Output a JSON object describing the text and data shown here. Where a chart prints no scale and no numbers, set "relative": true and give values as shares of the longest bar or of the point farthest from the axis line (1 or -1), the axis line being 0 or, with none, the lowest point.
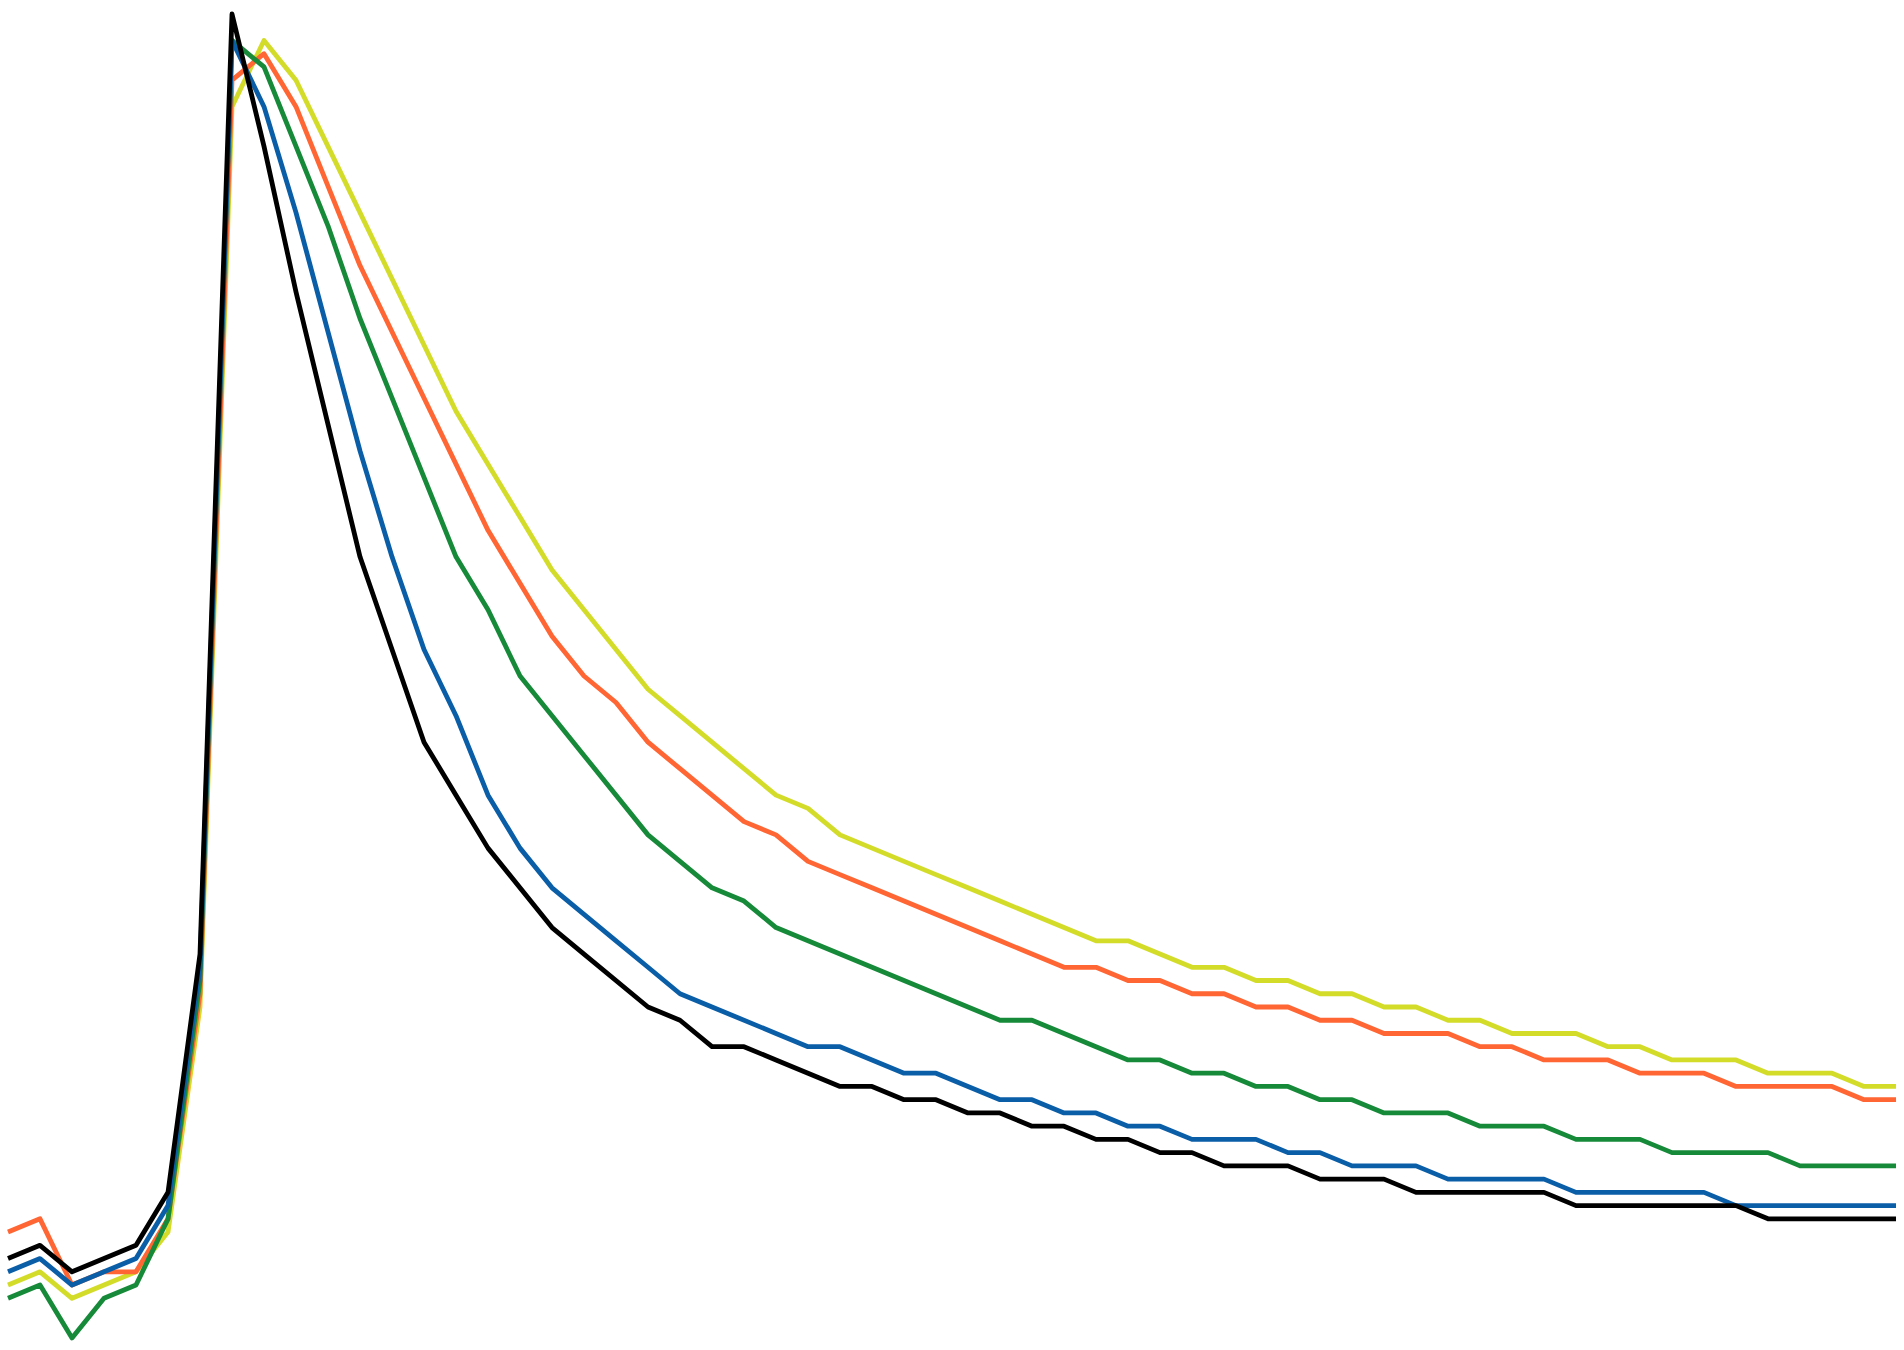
{
  "chart_data": {
    "type": "line",
    "relative": true,
    "categories": [
      null,
      null,
      null,
      null,
      null,
      null,
      null,
      null,
      null,
      null,
      null,
      null,
      null,
      null,
      null,
      null,
      null,
      null,
      null,
      null,
      null,
      null,
      null,
      null,
      null,
      null,
      null,
      null,
      null,
      null,
      null,
      null,
      null,
      null,
      null,
      null,
      null,
      null,
      null,
      null,
      null,
      null,
      null,
      null,
      null,
      null,
      null,
      null,
      null,
      null,
      null,
      null,
      null,
      null,
      null,
      null,
      null,
      null,
      null,
      null
    ],
    "series": [
      {
        "color": "#d4dc2a",
        "values": [
          0.04,
          0.05,
          0.03,
          0.04,
          0.05,
          0.08,
          0.25,
          0.93,
          0.98,
          0.95,
          0.9,
          0.85,
          0.8,
          0.75,
          0.7,
          0.66,
          0.62,
          0.58,
          0.55,
          0.52,
          0.49,
          0.47,
          0.45,
          0.43,
          0.41,
          0.4,
          0.38,
          0.37,
          0.36,
          0.35,
          0.34,
          0.33,
          0.32,
          0.31,
          0.3,
          0.3,
          0.29,
          0.28,
          0.28,
          0.27,
          0.27,
          0.26,
          0.26,
          0.25,
          0.25,
          0.24,
          0.24,
          0.23,
          0.23,
          0.23,
          0.22,
          0.22,
          0.21,
          0.21,
          0.21,
          0.2,
          0.2,
          0.2,
          0.19,
          0.19
        ]
      },
      {
        "color": "#ff6633",
        "values": [
          0.08,
          0.09,
          0.04,
          0.05,
          0.05,
          0.09,
          0.26,
          0.95,
          0.97,
          0.93,
          0.87,
          0.81,
          0.76,
          0.71,
          0.66,
          0.61,
          0.57,
          0.53,
          0.5,
          0.48,
          0.45,
          0.43,
          0.41,
          0.39,
          0.38,
          0.36,
          0.35,
          0.34,
          0.33,
          0.32,
          0.31,
          0.3,
          0.29,
          0.28,
          0.28,
          0.27,
          0.27,
          0.26,
          0.26,
          0.25,
          0.25,
          0.24,
          0.24,
          0.23,
          0.23,
          0.23,
          0.22,
          0.22,
          0.21,
          0.21,
          0.21,
          0.2,
          0.2,
          0.2,
          0.19,
          0.19,
          0.19,
          0.19,
          0.18,
          0.18
        ]
      },
      {
        "color": "#178a3a",
        "values": [
          0.03,
          0.04,
          0.0,
          0.03,
          0.04,
          0.09,
          0.27,
          0.98,
          0.96,
          0.9,
          0.84,
          0.77,
          0.71,
          0.65,
          0.59,
          0.55,
          0.5,
          0.47,
          0.44,
          0.41,
          0.38,
          0.36,
          0.34,
          0.33,
          0.31,
          0.3,
          0.29,
          0.28,
          0.27,
          0.26,
          0.25,
          0.24,
          0.24,
          0.23,
          0.22,
          0.21,
          0.21,
          0.2,
          0.2,
          0.19,
          0.19,
          0.18,
          0.18,
          0.17,
          0.17,
          0.17,
          0.16,
          0.16,
          0.16,
          0.15,
          0.15,
          0.15,
          0.14,
          0.14,
          0.14,
          0.14,
          0.13,
          0.13,
          0.13,
          0.13
        ]
      },
      {
        "color": "#0a5ea8",
        "values": [
          0.05,
          0.06,
          0.04,
          0.05,
          0.06,
          0.1,
          0.28,
          0.98,
          0.93,
          0.85,
          0.76,
          0.67,
          0.59,
          0.52,
          0.47,
          0.41,
          0.37,
          0.34,
          0.32,
          0.3,
          0.28,
          0.26,
          0.25,
          0.24,
          0.23,
          0.22,
          0.22,
          0.21,
          0.2,
          0.2,
          0.19,
          0.18,
          0.18,
          0.17,
          0.17,
          0.16,
          0.16,
          0.15,
          0.15,
          0.15,
          0.14,
          0.14,
          0.13,
          0.13,
          0.13,
          0.12,
          0.12,
          0.12,
          0.12,
          0.11,
          0.11,
          0.11,
          0.11,
          0.11,
          0.1,
          0.1,
          0.1,
          0.1,
          0.1,
          0.1
        ]
      },
      {
        "color": "#000000",
        "values": [
          0.06,
          0.07,
          0.05,
          0.06,
          0.07,
          0.11,
          0.29,
          1.0,
          0.9,
          0.79,
          0.69,
          0.59,
          0.52,
          0.45,
          0.41,
          0.37,
          0.34,
          0.31,
          0.29,
          0.27,
          0.25,
          0.24,
          0.22,
          0.22,
          0.21,
          0.2,
          0.19,
          0.19,
          0.18,
          0.18,
          0.17,
          0.17,
          0.16,
          0.16,
          0.15,
          0.15,
          0.14,
          0.14,
          0.13,
          0.13,
          0.13,
          0.12,
          0.12,
          0.12,
          0.11,
          0.11,
          0.11,
          0.11,
          0.11,
          0.1,
          0.1,
          0.1,
          0.1,
          0.1,
          0.1,
          0.09,
          0.09,
          0.09,
          0.09,
          0.09
        ]
      }
    ]
  }
}
